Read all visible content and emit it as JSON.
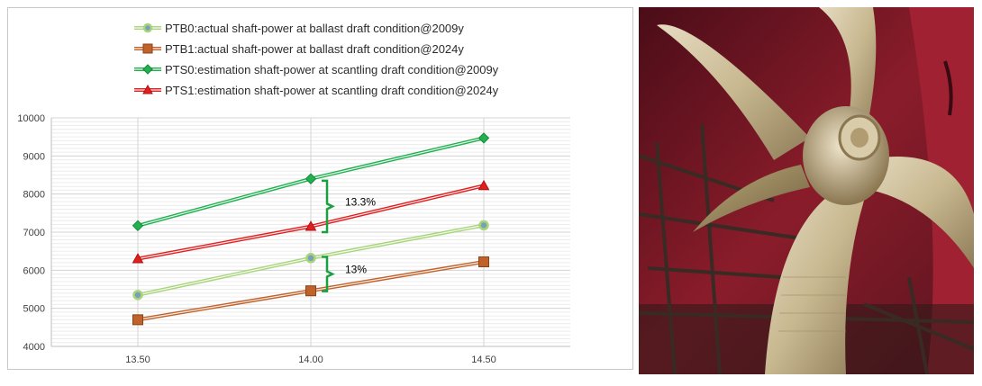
{
  "chart_data": {
    "type": "line",
    "x": [
      13.5,
      14.0,
      14.5
    ],
    "x_tick_labels": [
      "13.50",
      "14.00",
      "14.50"
    ],
    "xlim": [
      13.25,
      14.75
    ],
    "ylim": [
      4000,
      10000
    ],
    "y_ticks": [
      4000,
      5000,
      6000,
      7000,
      8000,
      9000,
      10000
    ],
    "y_tick_labels": [
      "4000",
      "5000",
      "6000",
      "7000",
      "8000",
      "9000",
      "10000"
    ],
    "grid": true,
    "legend_position": "top",
    "series": [
      {
        "name": "PTB0:actual shaft-power at ballast draft condition@2009y",
        "values": [
          5350,
          6320,
          7180
        ],
        "color": "#a8d47a",
        "marker": "circle",
        "marker_fill": "#7aa0b8"
      },
      {
        "name": "PTB1:actual shaft-power at ballast draft condition@2024y",
        "values": [
          4700,
          5460,
          6220
        ],
        "color": "#c0622a",
        "marker": "square",
        "marker_fill": "#c0622a"
      },
      {
        "name": "PTS0:estimation shaft-power at scantling draft condition@2009y",
        "values": [
          7170,
          8400,
          9470
        ],
        "color": "#22b050",
        "marker": "diamond",
        "marker_fill": "#22b050"
      },
      {
        "name": "PTS1:estimation shaft-power at scantling draft condition@2024y",
        "values": [
          6300,
          7150,
          8220
        ],
        "color": "#e02020",
        "marker": "triangle",
        "marker_fill": "#e02020"
      }
    ],
    "annotations": [
      {
        "text": "13.3%",
        "x": 14.0,
        "y_from": 7000,
        "y_to": 8350,
        "color": "#1aa040"
      },
      {
        "text": "13%",
        "x": 14.0,
        "y_from": 5450,
        "y_to": 6350,
        "color": "#1aa040"
      }
    ]
  },
  "photo": {
    "hull_color": "#8a1c2a",
    "propeller_color": "#c8b890",
    "scaffold_color": "#3a2a24"
  }
}
